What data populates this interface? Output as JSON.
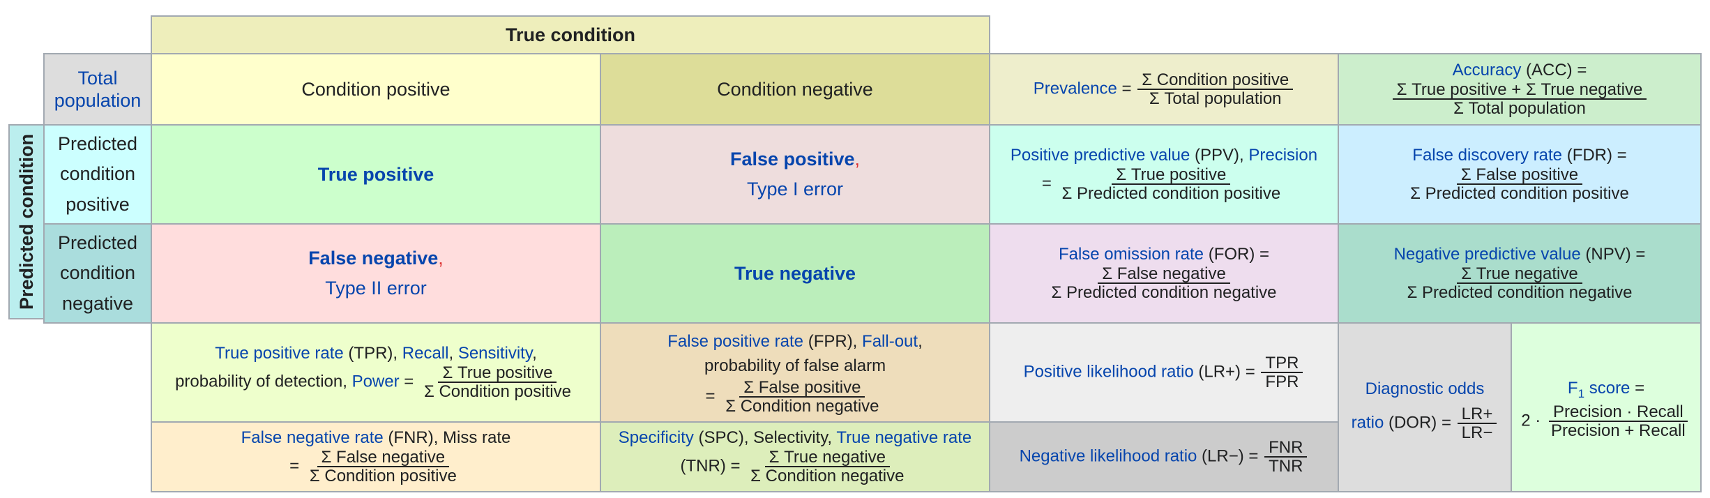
{
  "true_condition": "True condition",
  "predicted_condition": "Predicted condition",
  "total_population": [
    "Total",
    "population"
  ],
  "condition_positive": "Condition positive",
  "condition_negative": "Condition negative",
  "pred_cond_positive": [
    "Predicted",
    "condition",
    "positive"
  ],
  "pred_cond_negative": [
    "Predicted",
    "condition",
    "negative"
  ],
  "true_positive": "True positive",
  "false_positive": {
    "name": "False positive",
    "comma": ",",
    "alt": "Type I error"
  },
  "false_negative": {
    "name": "False negative",
    "comma": ",",
    "alt": "Type II error"
  },
  "true_negative": "True negative",
  "prevalence": {
    "label": "Prevalence",
    "eq": "=",
    "num": "Σ Condition positive",
    "den": "Σ Total population"
  },
  "accuracy": {
    "label": "Accuracy",
    "abbr": " (ACC) =",
    "num": "Σ True positive + Σ True negative",
    "den": "Σ Total population"
  },
  "ppv": {
    "label1": "Positive predictive value",
    "abbr": " (PPV), ",
    "label2": "Precision",
    "eq": "=",
    "num": "Σ True positive",
    "den": "Σ Predicted condition positive"
  },
  "fdr": {
    "label": "False discovery rate",
    "abbr": " (FDR) =",
    "num": "Σ False positive",
    "den": "Σ Predicted condition positive"
  },
  "for_rate": {
    "label": "False omission rate",
    "abbr": " (FOR) =",
    "num": "Σ False negative",
    "den": "Σ Predicted condition negative"
  },
  "npv": {
    "label": "Negative predictive value",
    "abbr": " (NPV) =",
    "num": "Σ True negative",
    "den": "Σ Predicted condition negative"
  },
  "tpr": {
    "label1": "True positive rate",
    "abbr": " (TPR), ",
    "label2": "Recall",
    "sep": ", ",
    "label3": "Sensitivity",
    "comma": ",",
    "line2": "probability of detection, ",
    "label4": "Power",
    "eq": " =",
    "num": "Σ True positive",
    "den": "Σ Condition positive"
  },
  "fpr": {
    "label1": "False positive rate",
    "abbr": " (FPR), ",
    "label2": "Fall-out",
    "comma": ",",
    "line2": "probability of false alarm",
    "eq": "=",
    "num": "Σ False positive",
    "den": "Σ Condition negative"
  },
  "fnr": {
    "label": "False negative rate",
    "abbr": " (FNR), Miss rate",
    "eq": "=",
    "num": "Σ False negative",
    "den": "Σ Condition positive"
  },
  "tnr": {
    "label1": "Specificity",
    "abbr": " (SPC), Selectivity, ",
    "label2": "True negative rate",
    "line2": "(TNR) =",
    "num": "Σ True negative",
    "den": "Σ Condition negative"
  },
  "lrp": {
    "label": "Positive likelihood ratio",
    "abbr": " (LR+) =",
    "num": "TPR",
    "den": "FPR"
  },
  "lrn": {
    "label": "Negative likelihood ratio",
    "abbr": " (LR−) =",
    "num": "FNR",
    "den": "TNR"
  },
  "dor": {
    "label1": "Diagnostic odds",
    "label2": "ratio",
    "abbr": " (DOR) =",
    "num": "LR+",
    "den": "LR−"
  },
  "f1": {
    "label": "F",
    "sub": "1",
    "label_rest": " score",
    "eq": " =",
    "prefix": "2 · ",
    "num": "Precision · Recall",
    "den": "Precision + Recall"
  },
  "colors": {
    "header": "#eeeebb",
    "cond_pos": "#ffffcc",
    "cond_neg": "#dddd99",
    "total_pop": "#dddddd",
    "pred_axis": "#bbeeee",
    "pred_pos": "#ccffff",
    "pred_neg": "#aadddd",
    "tp": "#ccffcc",
    "fp": "#eedddd",
    "fn": "#ffdddd",
    "tn": "#bbeebb",
    "prevalence": "#eeeecc",
    "accuracy": "#cceecc",
    "ppv": "#ccffee",
    "fdr": "#cceeff",
    "for": "#eeddee",
    "npv": "#aaddcc",
    "tpr": "#eeffcc",
    "fpr": "#eeddbb",
    "fnr": "#ffeecc",
    "tnr": "#ddeebb",
    "lrp": "#eeeeee",
    "lrn": "#cccccc",
    "dor": "#dddddd",
    "f1": "#ddffdd"
  }
}
